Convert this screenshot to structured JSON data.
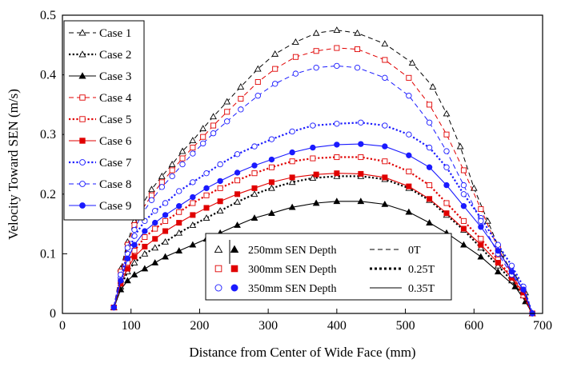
{
  "chart_data": {
    "type": "line",
    "xlabel": "Distance from Center of Wide Face (mm)",
    "ylabel": "Velocity Toward SEN (m/s)",
    "xlim": [
      0,
      700
    ],
    "ylim": [
      0,
      0.5
    ],
    "xticks": [
      0,
      100,
      200,
      300,
      400,
      500,
      600,
      700
    ],
    "yticks": [
      0,
      0.1,
      0.2,
      0.3,
      0.4,
      0.5
    ],
    "xtick_labels": [
      "0",
      "100",
      "200",
      "300",
      "400",
      "500",
      "600",
      "700"
    ],
    "ytick_labels": [
      "0",
      "0.1",
      "0.2",
      "0.3",
      "0.4",
      "0.5"
    ],
    "legend_position": "top-left",
    "colors": {
      "black": "#000000",
      "red": "#e00000",
      "blue": "#1a1aff"
    },
    "series": [
      {
        "name": "Case 1",
        "color": "#000000",
        "marker": "triangle-open",
        "dash": "dashed",
        "x": [
          75,
          85,
          95,
          105,
          115,
          130,
          145,
          160,
          175,
          190,
          205,
          220,
          240,
          260,
          285,
          310,
          340,
          370,
          400,
          430,
          470,
          510,
          540,
          560,
          580,
          600,
          620,
          640,
          660,
          675,
          685
        ],
        "y": [
          0.01,
          0.075,
          0.12,
          0.155,
          0.18,
          0.208,
          0.23,
          0.25,
          0.272,
          0.29,
          0.31,
          0.33,
          0.355,
          0.38,
          0.41,
          0.435,
          0.455,
          0.47,
          0.475,
          0.47,
          0.452,
          0.42,
          0.38,
          0.335,
          0.28,
          0.21,
          0.155,
          0.1,
          0.06,
          0.035,
          0.0
        ]
      },
      {
        "name": "Case 2",
        "color": "#000000",
        "marker": "triangle-open",
        "dash": "dotted",
        "x": [
          75,
          85,
          95,
          105,
          120,
          135,
          150,
          170,
          190,
          210,
          230,
          255,
          280,
          305,
          335,
          365,
          400,
          435,
          470,
          505,
          535,
          560,
          585,
          610,
          635,
          655,
          672,
          685
        ],
        "y": [
          0.01,
          0.045,
          0.07,
          0.085,
          0.1,
          0.11,
          0.12,
          0.135,
          0.148,
          0.16,
          0.172,
          0.187,
          0.2,
          0.21,
          0.22,
          0.227,
          0.23,
          0.23,
          0.225,
          0.21,
          0.19,
          0.165,
          0.14,
          0.11,
          0.08,
          0.055,
          0.03,
          0.0
        ]
      },
      {
        "name": "Case 3",
        "color": "#000000",
        "marker": "triangle-filled",
        "dash": "solid",
        "x": [
          75,
          85,
          95,
          105,
          120,
          135,
          150,
          170,
          190,
          210,
          230,
          255,
          280,
          305,
          335,
          370,
          400,
          435,
          470,
          505,
          535,
          560,
          585,
          610,
          635,
          660,
          675,
          685
        ],
        "y": [
          0.01,
          0.04,
          0.055,
          0.065,
          0.075,
          0.085,
          0.095,
          0.105,
          0.115,
          0.125,
          0.135,
          0.148,
          0.16,
          0.168,
          0.178,
          0.185,
          0.188,
          0.188,
          0.183,
          0.17,
          0.152,
          0.135,
          0.115,
          0.095,
          0.07,
          0.045,
          0.02,
          0.0
        ]
      },
      {
        "name": "Case 4",
        "color": "#e00000",
        "marker": "square-open",
        "dash": "dashed",
        "x": [
          75,
          85,
          95,
          105,
          115,
          130,
          145,
          160,
          175,
          190,
          205,
          220,
          240,
          260,
          285,
          310,
          340,
          370,
          400,
          430,
          470,
          505,
          535,
          560,
          585,
          610,
          635,
          655,
          672,
          685
        ],
        "y": [
          0.01,
          0.07,
          0.115,
          0.148,
          0.172,
          0.198,
          0.22,
          0.24,
          0.26,
          0.278,
          0.296,
          0.315,
          0.338,
          0.36,
          0.388,
          0.41,
          0.43,
          0.44,
          0.445,
          0.443,
          0.425,
          0.395,
          0.35,
          0.3,
          0.24,
          0.175,
          0.11,
          0.065,
          0.035,
          0.0
        ]
      },
      {
        "name": "Case 5",
        "color": "#e00000",
        "marker": "square-open",
        "dash": "dotted",
        "x": [
          75,
          85,
          95,
          105,
          120,
          135,
          150,
          170,
          190,
          210,
          230,
          255,
          280,
          305,
          335,
          365,
          400,
          435,
          470,
          505,
          535,
          560,
          585,
          610,
          635,
          655,
          672,
          685
        ],
        "y": [
          0.01,
          0.055,
          0.085,
          0.105,
          0.128,
          0.142,
          0.155,
          0.17,
          0.185,
          0.198,
          0.21,
          0.223,
          0.235,
          0.245,
          0.255,
          0.26,
          0.262,
          0.262,
          0.255,
          0.238,
          0.215,
          0.185,
          0.155,
          0.125,
          0.09,
          0.06,
          0.03,
          0.0
        ]
      },
      {
        "name": "Case 6",
        "color": "#e00000",
        "marker": "square-filled",
        "dash": "solid",
        "x": [
          75,
          85,
          95,
          105,
          120,
          135,
          150,
          170,
          190,
          210,
          230,
          255,
          280,
          305,
          335,
          370,
          400,
          435,
          470,
          505,
          535,
          560,
          585,
          610,
          635,
          655,
          672,
          685
        ],
        "y": [
          0.01,
          0.05,
          0.075,
          0.095,
          0.112,
          0.125,
          0.138,
          0.152,
          0.165,
          0.177,
          0.188,
          0.2,
          0.21,
          0.22,
          0.228,
          0.233,
          0.235,
          0.234,
          0.228,
          0.213,
          0.192,
          0.168,
          0.142,
          0.115,
          0.085,
          0.06,
          0.035,
          0.0
        ]
      },
      {
        "name": "Case 7",
        "color": "#1a1aff",
        "marker": "circle-open",
        "dash": "dotted",
        "x": [
          75,
          85,
          95,
          105,
          120,
          135,
          150,
          170,
          190,
          210,
          230,
          255,
          280,
          305,
          335,
          365,
          400,
          435,
          470,
          505,
          535,
          560,
          585,
          610,
          635,
          655,
          672,
          685
        ],
        "y": [
          0.01,
          0.06,
          0.1,
          0.13,
          0.155,
          0.172,
          0.185,
          0.205,
          0.22,
          0.235,
          0.25,
          0.267,
          0.28,
          0.292,
          0.305,
          0.315,
          0.318,
          0.32,
          0.315,
          0.3,
          0.278,
          0.245,
          0.2,
          0.16,
          0.115,
          0.08,
          0.045,
          0.0
        ]
      },
      {
        "name": "Case 8",
        "color": "#1a1aff",
        "marker": "circle-open",
        "dash": "dashed",
        "x": [
          75,
          85,
          95,
          105,
          115,
          130,
          145,
          160,
          175,
          190,
          205,
          220,
          240,
          260,
          285,
          310,
          340,
          370,
          400,
          430,
          470,
          505,
          535,
          560,
          585,
          610,
          635,
          655,
          672,
          685
        ],
        "y": [
          0.01,
          0.065,
          0.11,
          0.14,
          0.165,
          0.19,
          0.212,
          0.23,
          0.25,
          0.268,
          0.285,
          0.302,
          0.322,
          0.342,
          0.365,
          0.385,
          0.402,
          0.412,
          0.415,
          0.412,
          0.395,
          0.365,
          0.32,
          0.272,
          0.215,
          0.155,
          0.1,
          0.065,
          0.04,
          0.0
        ]
      },
      {
        "name": "Case 9",
        "color": "#1a1aff",
        "marker": "circle-filled",
        "dash": "solid",
        "x": [
          75,
          85,
          95,
          105,
          120,
          135,
          150,
          170,
          190,
          210,
          230,
          255,
          280,
          305,
          335,
          365,
          400,
          435,
          470,
          505,
          535,
          560,
          585,
          610,
          635,
          655,
          672,
          685
        ],
        "y": [
          0.01,
          0.055,
          0.092,
          0.115,
          0.138,
          0.152,
          0.165,
          0.18,
          0.195,
          0.21,
          0.222,
          0.236,
          0.248,
          0.258,
          0.27,
          0.278,
          0.283,
          0.284,
          0.28,
          0.265,
          0.245,
          0.215,
          0.18,
          0.145,
          0.105,
          0.07,
          0.04,
          0.0
        ]
      }
    ],
    "legend2": {
      "rows": [
        {
          "label": "250mm SEN Depth",
          "color": "#000000",
          "open_marker": "triangle-open",
          "filled_marker": "triangle-filled",
          "line_label": "0T",
          "dash": "dashed"
        },
        {
          "label": "300mm SEN Depth",
          "color": "#e00000",
          "open_marker": "square-open",
          "filled_marker": "square-filled",
          "line_label": "0.25T",
          "dash": "dotted"
        },
        {
          "label": "350mm SEN Depth",
          "color": "#1a1aff",
          "open_marker": "circle-open",
          "filled_marker": "circle-filled",
          "line_label": "0.35T",
          "dash": "solid"
        }
      ]
    }
  }
}
